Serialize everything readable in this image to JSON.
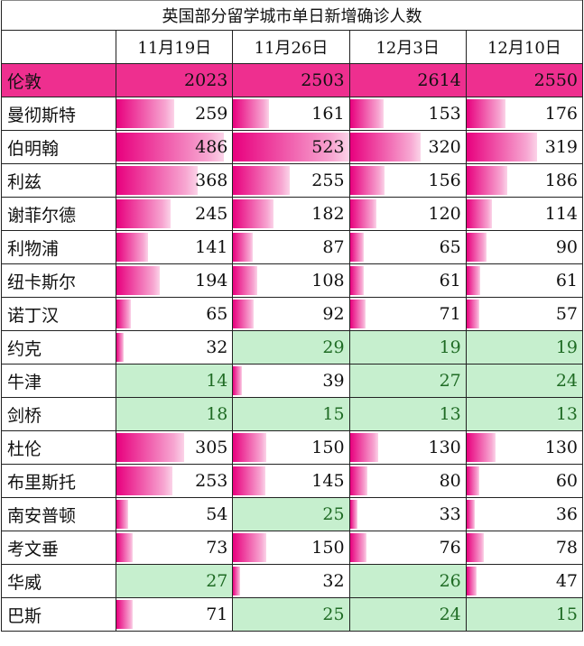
{
  "chart_data": {
    "type": "table",
    "title": "英国部分留学城市单日新增确诊人数",
    "columns": [
      "11月19日",
      "11月26日",
      "12月3日",
      "12月10日"
    ],
    "rows": [
      {
        "city": "伦敦",
        "values": [
          2023,
          2503,
          2614,
          2550
        ]
      },
      {
        "city": "曼彻斯特",
        "values": [
          259,
          161,
          153,
          176
        ]
      },
      {
        "city": "伯明翰",
        "values": [
          486,
          523,
          320,
          319
        ]
      },
      {
        "city": "利兹",
        "values": [
          368,
          255,
          156,
          186
        ]
      },
      {
        "city": "谢菲尔德",
        "values": [
          245,
          182,
          120,
          114
        ]
      },
      {
        "city": "利物浦",
        "values": [
          141,
          87,
          65,
          90
        ]
      },
      {
        "city": "纽卡斯尔",
        "values": [
          194,
          108,
          61,
          61
        ]
      },
      {
        "city": "诺丁汉",
        "values": [
          65,
          92,
          71,
          57
        ]
      },
      {
        "city": "约克",
        "values": [
          32,
          29,
          19,
          19
        ]
      },
      {
        "city": "牛津",
        "values": [
          14,
          39,
          27,
          24
        ]
      },
      {
        "city": "剑桥",
        "values": [
          18,
          15,
          13,
          13
        ]
      },
      {
        "city": "杜伦",
        "values": [
          305,
          150,
          130,
          130
        ]
      },
      {
        "city": "布里斯托",
        "values": [
          253,
          145,
          80,
          60
        ]
      },
      {
        "city": "南安普顿",
        "values": [
          54,
          25,
          33,
          36
        ]
      },
      {
        "city": "考文垂",
        "values": [
          73,
          150,
          76,
          78
        ]
      },
      {
        "city": "华威",
        "values": [
          27,
          32,
          26,
          47
        ]
      },
      {
        "city": "巴斯",
        "values": [
          71,
          25,
          24,
          15
        ]
      }
    ],
    "highlight_low_threshold": 30,
    "colors": {
      "bar": "#e8007e",
      "header_row": "#ee2f8f",
      "low_fill": "#c6efce",
      "low_text": "#1f6b24"
    }
  }
}
